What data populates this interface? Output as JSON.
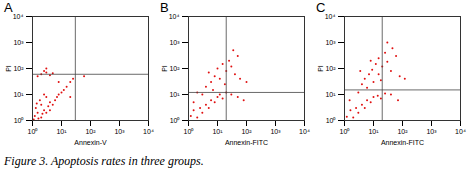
{
  "caption": "Figure 3. Apoptosis rates in three groups.",
  "chart_data": [
    {
      "type": "scatter",
      "title": "A",
      "xlabel": "Annexin-V",
      "ylabel": "PI",
      "log": true,
      "color": "#e01010",
      "xlim": [
        1,
        10000
      ],
      "ylim": [
        1,
        10000
      ],
      "xticks": [
        {
          "value": 1,
          "label": "10⁰"
        },
        {
          "value": 10,
          "label": "10¹"
        },
        {
          "value": 100,
          "label": "10²"
        },
        {
          "value": 1000,
          "label": "10³"
        },
        {
          "value": 10000,
          "label": "10⁴"
        }
      ],
      "yticks": [
        {
          "value": 1,
          "label": "10⁰"
        },
        {
          "value": 10,
          "label": "10¹"
        },
        {
          "value": 100,
          "label": "10²"
        },
        {
          "value": 1000,
          "label": "10³"
        },
        {
          "value": 10000,
          "label": "10⁴"
        }
      ],
      "quadrant": {
        "x": 30,
        "y": 60
      },
      "x": [
        1.2,
        1.5,
        2,
        1.3,
        2.5,
        3,
        2,
        1.8,
        3.5,
        4,
        5,
        6,
        3,
        2.5,
        7,
        8,
        10,
        12,
        15,
        20,
        25,
        1.1,
        1.6,
        2.2,
        4,
        1.4,
        2,
        3,
        4,
        2.5,
        5,
        3,
        1.5,
        8,
        20,
        60
      ],
      "y": [
        1.5,
        2,
        1.3,
        3,
        2.5,
        2,
        4,
        6,
        3.5,
        5,
        4,
        6,
        8,
        10,
        8,
        10,
        12,
        15,
        20,
        30,
        40,
        1.1,
        1.2,
        1.8,
        2.5,
        4.5,
        60,
        70,
        55,
        80,
        65,
        100,
        50,
        30,
        8,
        50
      ]
    },
    {
      "type": "scatter",
      "title": "B",
      "xlabel": "Annexin-FITC",
      "ylabel": "PI",
      "log": true,
      "color": "#e01010",
      "xlim": [
        1,
        10000
      ],
      "ylim": [
        1,
        10000
      ],
      "xticks": [
        {
          "value": 1,
          "label": "10⁰"
        },
        {
          "value": 10,
          "label": "10¹"
        },
        {
          "value": 100,
          "label": "10²"
        },
        {
          "value": 1000,
          "label": "10³"
        },
        {
          "value": 10000,
          "label": "10⁴"
        }
      ],
      "yticks": [
        {
          "value": 1,
          "label": "10⁰"
        },
        {
          "value": 10,
          "label": "10¹"
        },
        {
          "value": 100,
          "label": "10²"
        },
        {
          "value": 1000,
          "label": "10³"
        },
        {
          "value": 10000,
          "label": "10⁴"
        }
      ],
      "quadrant": {
        "x": 20,
        "y": 12
      },
      "x": [
        1.2,
        1.5,
        2,
        2.5,
        3,
        4,
        5,
        6,
        8,
        10,
        12,
        15,
        20,
        30,
        50,
        80,
        1.5,
        3,
        4,
        6,
        8,
        10,
        15,
        20,
        25,
        30,
        40,
        50,
        12,
        7,
        18,
        60,
        100,
        5,
        35,
        2
      ],
      "y": [
        1.5,
        2.5,
        1.3,
        3,
        2,
        4,
        3,
        6,
        5,
        8,
        10,
        7,
        12,
        10,
        8,
        6,
        5,
        10,
        20,
        30,
        50,
        100,
        150,
        80,
        200,
        120,
        60,
        300,
        40,
        15,
        25,
        40,
        30,
        70,
        500,
        12
      ]
    },
    {
      "type": "scatter",
      "title": "C",
      "xlabel": "Annexin-FITC",
      "ylabel": "PI",
      "log": true,
      "color": "#e01010",
      "xlim": [
        1,
        10000
      ],
      "ylim": [
        1,
        10000
      ],
      "xticks": [
        {
          "value": 1,
          "label": "10⁰"
        },
        {
          "value": 10,
          "label": "10¹"
        },
        {
          "value": 100,
          "label": "10²"
        },
        {
          "value": 1000,
          "label": "10³"
        },
        {
          "value": 10000,
          "label": "10⁴"
        }
      ],
      "yticks": [
        {
          "value": 1,
          "label": "10⁰"
        },
        {
          "value": 10,
          "label": "10¹"
        },
        {
          "value": 100,
          "label": "10²"
        },
        {
          "value": 1000,
          "label": "10³"
        },
        {
          "value": 10000,
          "label": "10⁴"
        }
      ],
      "quadrant": {
        "x": 20,
        "y": 15
      },
      "x": [
        1.2,
        1.6,
        2,
        2.5,
        3,
        4,
        5,
        6,
        8,
        10,
        14,
        18,
        25,
        40,
        70,
        1.5,
        3,
        4,
        5,
        7,
        9,
        12,
        15,
        20,
        25,
        30,
        40,
        60,
        80,
        10,
        6,
        18,
        45,
        120,
        3.5,
        30,
        15,
        8
      ],
      "y": [
        1.4,
        2.5,
        1.3,
        3,
        2,
        4,
        3,
        6,
        5,
        8,
        9,
        7,
        11,
        10,
        6,
        6,
        12,
        25,
        40,
        60,
        90,
        150,
        250,
        120,
        400,
        180,
        80,
        300,
        50,
        30,
        18,
        35,
        600,
        40,
        80,
        1000,
        60,
        200
      ]
    }
  ]
}
